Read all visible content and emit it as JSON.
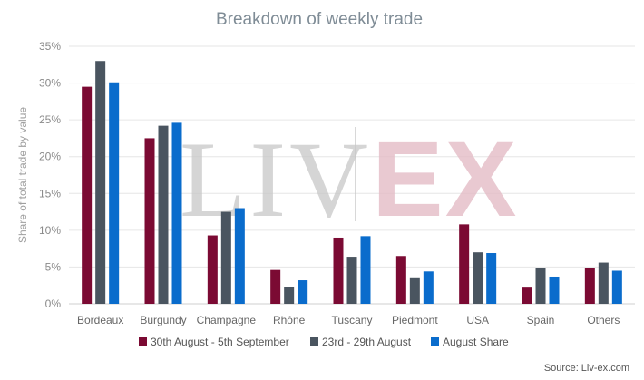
{
  "chart_data": {
    "type": "bar",
    "title": "Breakdown of weekly trade",
    "xlabel": "",
    "ylabel": "Share of total trade by value",
    "ylim": [
      0,
      35
    ],
    "yticks": [
      0,
      5,
      10,
      15,
      20,
      25,
      30,
      35
    ],
    "ytick_labels": [
      "0%",
      "5%",
      "10%",
      "15%",
      "20%",
      "25%",
      "30%",
      "35%"
    ],
    "grid": true,
    "legend_position": "bottom",
    "categories": [
      "Bordeaux",
      "Burgundy",
      "Champagne",
      "Rhône",
      "Tuscany",
      "Piedmont",
      "USA",
      "Spain",
      "Others"
    ],
    "series": [
      {
        "name": "30th August - 5th September",
        "color": "#7b0a33",
        "values": [
          29.5,
          22.5,
          9.3,
          4.6,
          9.0,
          6.5,
          10.8,
          2.2,
          4.9
        ]
      },
      {
        "name": "23rd - 29th August",
        "color": "#4a5560",
        "values": [
          33.0,
          24.2,
          12.5,
          2.3,
          6.4,
          3.6,
          7.0,
          4.9,
          5.6
        ]
      },
      {
        "name": "August Share",
        "color": "#0a6ccc",
        "values": [
          30.1,
          24.6,
          13.0,
          3.2,
          9.2,
          4.4,
          6.9,
          3.7,
          4.5
        ]
      }
    ]
  },
  "watermark": {
    "left": "LIV",
    "right": "EX"
  },
  "source": "Source: Liv-ex.com"
}
